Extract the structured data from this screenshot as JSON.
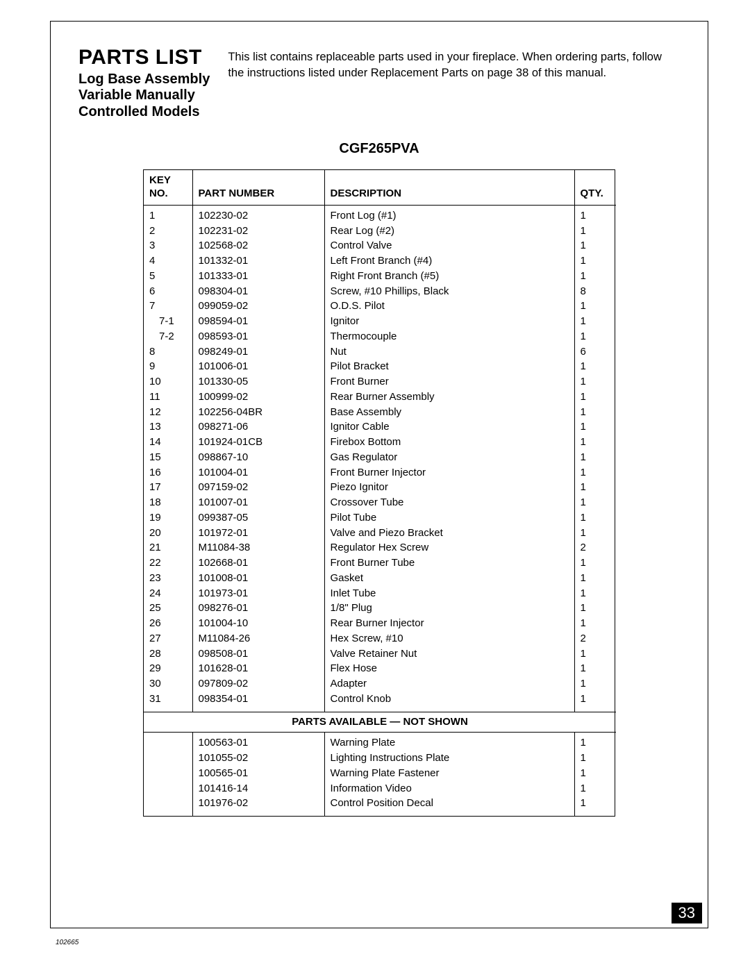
{
  "header": {
    "main_title": "PARTS LIST",
    "subtitle_line1": "Log Base Assembly",
    "subtitle_line2": "Variable Manually",
    "subtitle_line3": "Controlled Models",
    "intro_text": "This list contains replaceable parts used in your fireplace. When ordering parts, follow the instructions listed under Replacement Parts on page 38 of this manual."
  },
  "model_heading": "CGF265PVA",
  "table": {
    "columns": {
      "key_line1": "KEY",
      "key_line2": "NO.",
      "part": "PART NUMBER",
      "desc": "DESCRIPTION",
      "qty": "QTY."
    },
    "rows": [
      {
        "key": "1",
        "indent": false,
        "part": "102230-02",
        "desc": "Front Log (#1)",
        "qty": "1"
      },
      {
        "key": "2",
        "indent": false,
        "part": "102231-02",
        "desc": "Rear Log (#2)",
        "qty": "1"
      },
      {
        "key": "3",
        "indent": false,
        "part": "102568-02",
        "desc": "Control Valve",
        "qty": "1"
      },
      {
        "key": "4",
        "indent": false,
        "part": "101332-01",
        "desc": "Left Front Branch (#4)",
        "qty": "1"
      },
      {
        "key": "5",
        "indent": false,
        "part": "101333-01",
        "desc": "Right Front Branch (#5)",
        "qty": "1"
      },
      {
        "key": "6",
        "indent": false,
        "part": "098304-01",
        "desc": "Screw, #10 Phillips, Black",
        "qty": "8"
      },
      {
        "key": "7",
        "indent": false,
        "part": "099059-02",
        "desc": "O.D.S. Pilot",
        "qty": "1"
      },
      {
        "key": "7-1",
        "indent": true,
        "part": "098594-01",
        "desc": "Ignitor",
        "qty": "1"
      },
      {
        "key": "7-2",
        "indent": true,
        "part": "098593-01",
        "desc": "Thermocouple",
        "qty": "1"
      },
      {
        "key": "8",
        "indent": false,
        "part": "098249-01",
        "desc": "Nut",
        "qty": "6"
      },
      {
        "key": "9",
        "indent": false,
        "part": "101006-01",
        "desc": "Pilot Bracket",
        "qty": "1"
      },
      {
        "key": "10",
        "indent": false,
        "part": "101330-05",
        "desc": "Front Burner",
        "qty": "1"
      },
      {
        "key": "11",
        "indent": false,
        "part": "100999-02",
        "desc": "Rear Burner Assembly",
        "qty": "1"
      },
      {
        "key": "12",
        "indent": false,
        "part": "102256-04BR",
        "desc": "Base Assembly",
        "qty": "1"
      },
      {
        "key": "13",
        "indent": false,
        "part": "098271-06",
        "desc": "Ignitor Cable",
        "qty": "1"
      },
      {
        "key": "14",
        "indent": false,
        "part": "101924-01CB",
        "desc": "Firebox Bottom",
        "qty": "1"
      },
      {
        "key": "15",
        "indent": false,
        "part": "098867-10",
        "desc": "Gas Regulator",
        "qty": "1"
      },
      {
        "key": "16",
        "indent": false,
        "part": "101004-01",
        "desc": "Front Burner Injector",
        "qty": "1"
      },
      {
        "key": "17",
        "indent": false,
        "part": "097159-02",
        "desc": "Piezo Ignitor",
        "qty": "1"
      },
      {
        "key": "18",
        "indent": false,
        "part": "101007-01",
        "desc": "Crossover Tube",
        "qty": "1"
      },
      {
        "key": "19",
        "indent": false,
        "part": "099387-05",
        "desc": "Pilot Tube",
        "qty": "1"
      },
      {
        "key": "20",
        "indent": false,
        "part": "101972-01",
        "desc": "Valve and Piezo Bracket",
        "qty": "1"
      },
      {
        "key": "21",
        "indent": false,
        "part": "M11084-38",
        "desc": "Regulator Hex Screw",
        "qty": "2"
      },
      {
        "key": "22",
        "indent": false,
        "part": "102668-01",
        "desc": "Front Burner Tube",
        "qty": "1"
      },
      {
        "key": "23",
        "indent": false,
        "part": "101008-01",
        "desc": "Gasket",
        "qty": "1"
      },
      {
        "key": "24",
        "indent": false,
        "part": "101973-01",
        "desc": "Inlet Tube",
        "qty": "1"
      },
      {
        "key": "25",
        "indent": false,
        "part": "098276-01",
        "desc": "1/8\" Plug",
        "qty": "1"
      },
      {
        "key": "26",
        "indent": false,
        "part": "101004-10",
        "desc": "Rear Burner Injector",
        "qty": "1"
      },
      {
        "key": "27",
        "indent": false,
        "part": "M11084-26",
        "desc": "Hex Screw, #10",
        "qty": "2"
      },
      {
        "key": "28",
        "indent": false,
        "part": "098508-01",
        "desc": "Valve Retainer Nut",
        "qty": "1"
      },
      {
        "key": "29",
        "indent": false,
        "part": "101628-01",
        "desc": "Flex Hose",
        "qty": "1"
      },
      {
        "key": "30",
        "indent": false,
        "part": "097809-02",
        "desc": "Adapter",
        "qty": "1"
      },
      {
        "key": "31",
        "indent": false,
        "part": "098354-01",
        "desc": "Control Knob",
        "qty": "1"
      }
    ],
    "section_label": "PARTS AVAILABLE — NOT SHOWN",
    "rows2": [
      {
        "key": "",
        "part": "100563-01",
        "desc": "Warning Plate",
        "qty": "1"
      },
      {
        "key": "",
        "part": "101055-02",
        "desc": "Lighting Instructions Plate",
        "qty": "1"
      },
      {
        "key": "",
        "part": "100565-01",
        "desc": "Warning Plate Fastener",
        "qty": "1"
      },
      {
        "key": "",
        "part": "101416-14",
        "desc": "Information Video",
        "qty": "1"
      },
      {
        "key": "",
        "part": "101976-02",
        "desc": "Control Position Decal",
        "qty": "1"
      }
    ]
  },
  "footer": {
    "page_number": "33",
    "doc_id": "102665"
  }
}
